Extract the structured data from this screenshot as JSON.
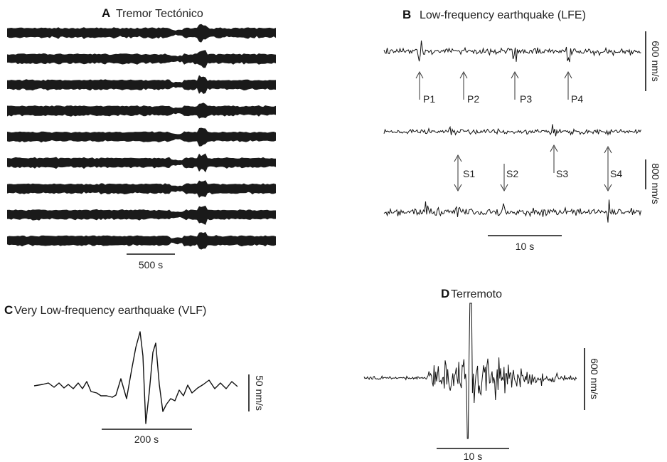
{
  "panels": {
    "a": {
      "letter": "A",
      "title": "Tremor Tectónico",
      "time_scale": "500 s",
      "trace_count": 9
    },
    "b": {
      "letter": "B",
      "title": "Low-frequency earthquake (LFE)",
      "amp_scale_top": "600 nm/s",
      "amp_scale_bottom": "800 nm/s",
      "time_scale": "10 s",
      "p_arrivals": [
        "P1",
        "P2",
        "P3",
        "P4"
      ],
      "s_arrivals": [
        "S1",
        "S2",
        "S3",
        "S4"
      ]
    },
    "c": {
      "letter": "C",
      "title": "Very Low-frequency earthquake (VLF)",
      "amp_scale": "50 nm/s",
      "time_scale": "200 s"
    },
    "d": {
      "letter": "D",
      "title": "Terremoto",
      "amp_scale": "600 nm/s",
      "time_scale": "10 s"
    }
  },
  "colors": {
    "trace": "#111111",
    "band": "#1a1a1a"
  }
}
